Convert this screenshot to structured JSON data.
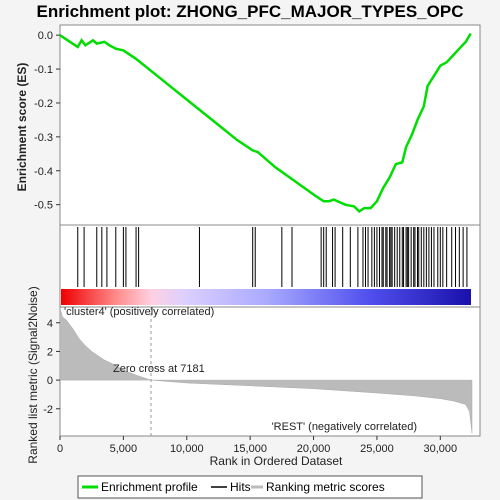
{
  "chart_data": {
    "type": "line",
    "title": "Enrichment plot: ZHONG_PFC_MAJOR_TYPES_OPC",
    "top": {
      "ylabel": "Enrichment score (ES)",
      "ylim": [
        -0.56,
        0.03
      ],
      "yticks": [
        "0.0",
        "-0.1",
        "-0.2",
        "-0.3",
        "-0.4",
        "-0.5"
      ],
      "ytick_values": [
        0.0,
        -0.1,
        -0.2,
        -0.3,
        -0.4,
        -0.5
      ],
      "series_name": "Enrichment profile",
      "x": [
        0,
        800,
        1400,
        1700,
        2000,
        2600,
        2900,
        3500,
        3900,
        4400,
        5000,
        6000,
        8000,
        10000,
        12000,
        14000,
        15200,
        15600,
        17000,
        18500,
        20000,
        20800,
        21200,
        21600,
        22500,
        23200,
        23600,
        24000,
        24500,
        25000,
        25500,
        26000,
        26500,
        27000,
        27300,
        27800,
        28200,
        28700,
        29000,
        29500,
        30000,
        30500,
        31000,
        31500,
        32000,
        32400
      ],
      "y": [
        0.0,
        -0.02,
        -0.035,
        -0.015,
        -0.03,
        -0.015,
        -0.025,
        -0.02,
        -0.03,
        -0.04,
        -0.045,
        -0.07,
        -0.13,
        -0.19,
        -0.25,
        -0.31,
        -0.34,
        -0.345,
        -0.39,
        -0.43,
        -0.47,
        -0.49,
        -0.49,
        -0.485,
        -0.5,
        -0.505,
        -0.52,
        -0.51,
        -0.51,
        -0.49,
        -0.45,
        -0.42,
        -0.38,
        -0.375,
        -0.33,
        -0.29,
        -0.25,
        -0.21,
        -0.15,
        -0.12,
        -0.09,
        -0.08,
        -0.06,
        -0.04,
        -0.02,
        0.005
      ],
      "hits": [
        1400,
        1900,
        2900,
        3300,
        3700,
        4400,
        5000,
        5200,
        6000,
        6200,
        11000,
        15200,
        15400,
        17500,
        18300,
        20600,
        20800,
        21000,
        21500,
        21700,
        22300,
        22900,
        23500,
        23900,
        24100,
        24300,
        24600,
        24800,
        25000,
        25200,
        25400,
        25500,
        25700,
        25800,
        26000,
        26100,
        26200,
        26400,
        26600,
        26800,
        27000,
        27100,
        27300,
        27400,
        27500,
        27700,
        27900,
        28000,
        28200,
        28300,
        28500,
        28700,
        28900,
        29100,
        29300,
        29500,
        29800,
        30000,
        30200,
        30500,
        30900,
        31200,
        31500,
        31800,
        32100
      ]
    },
    "bottom": {
      "ylabel": "Ranked list metric (Signal2Noise)",
      "xlabel": "Rank in Ordered Dataset",
      "xlim": [
        0,
        33000
      ],
      "xticks": [
        "0",
        "5,000",
        "10,000",
        "15,000",
        "20,000",
        "25,000",
        "30,000"
      ],
      "xtick_values": [
        0,
        5000,
        10000,
        15000,
        20000,
        25000,
        30000
      ],
      "ylim": [
        -3.9,
        5.1
      ],
      "yticks": [
        "4",
        "2",
        "0",
        "-2"
      ],
      "ytick_values": [
        4,
        2,
        0,
        -2
      ],
      "metric_x": [
        0,
        200,
        500,
        1000,
        1500,
        2000,
        2500,
        3000,
        3500,
        4000,
        5000,
        6000,
        7181,
        10000,
        15000,
        20000,
        25000,
        28000,
        30000,
        31000,
        32000,
        32300,
        32500
      ],
      "metric_y": [
        5.0,
        4.4,
        4.2,
        3.6,
        2.9,
        2.4,
        2.0,
        1.7,
        1.4,
        1.2,
        0.7,
        0.35,
        0.0,
        -0.2,
        -0.4,
        -0.6,
        -0.9,
        -1.1,
        -1.3,
        -1.45,
        -1.7,
        -2.2,
        -3.7
      ],
      "zero_cross_label": "Zero cross at 7181",
      "zero_cross": 7181,
      "pos_label": "'cluster4' (positively correlated)",
      "neg_label": "'REST' (negatively correlated)"
    },
    "legend": {
      "placement": "bottom",
      "items": [
        {
          "label": "Enrichment profile",
          "color": "#00dd00"
        },
        {
          "label": "Hits",
          "color": "#000000"
        },
        {
          "label": "Ranking metric scores",
          "color": "#bbbbbb"
        }
      ]
    },
    "colors": {
      "es_line": "#00dd00",
      "hit": "#000000",
      "metric_fill": "#bbbbbb",
      "pos_text": "#ff4040",
      "neg_text": "#4040dd"
    }
  }
}
